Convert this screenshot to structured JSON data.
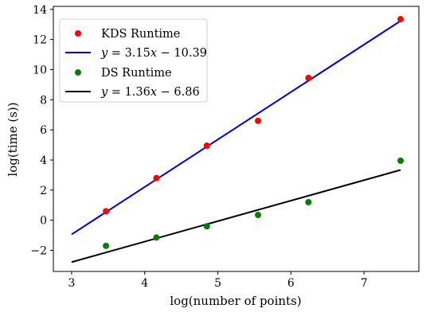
{
  "chart_data": {
    "type": "scatter",
    "xlabel": "log(number of points)",
    "ylabel": "log(time (s))",
    "xlim": [
      2.75,
      7.75
    ],
    "ylim": [
      -3.4,
      14.2
    ],
    "xticks": [
      3,
      4,
      5,
      6,
      7
    ],
    "yticks": [
      -2,
      0,
      2,
      4,
      6,
      8,
      10,
      12,
      14
    ],
    "xtick_labels": [
      "3",
      "4",
      "5",
      "6",
      "7"
    ],
    "ytick_labels": [
      "−2",
      "0",
      "2",
      "4",
      "6",
      "8",
      "10",
      "12",
      "14"
    ],
    "grid": false,
    "legend_position": "upper-left",
    "series": [
      {
        "name": "KDS Runtime",
        "kind": "scatter",
        "color": "#ff0000",
        "x": [
          3.47,
          4.16,
          4.85,
          5.55,
          6.24,
          7.5
        ],
        "y": [
          0.6,
          2.8,
          4.95,
          6.6,
          9.45,
          13.35
        ]
      },
      {
        "name": "y = 3.15x − 10.39",
        "kind": "fit-line",
        "color": "#0000dd",
        "slope": 3.15,
        "intercept": -10.39,
        "x_range": [
          3.0,
          7.5
        ],
        "legend_parts": {
          "var": "y",
          "eq": " = 3.15",
          "xvar": "x",
          "rest": " − 10.39"
        }
      },
      {
        "name": "DS Runtime",
        "kind": "scatter",
        "color": "#008000",
        "x": [
          3.47,
          4.16,
          4.85,
          5.55,
          6.24,
          7.5
        ],
        "y": [
          -1.7,
          -1.15,
          -0.4,
          0.35,
          1.2,
          3.95
        ]
      },
      {
        "name": "y = 1.36x − 6.86",
        "kind": "fit-line",
        "color": "#000000",
        "slope": 1.36,
        "intercept": -6.86,
        "x_range": [
          3.0,
          7.5
        ],
        "legend_parts": {
          "var": "y",
          "eq": " = 1.36",
          "xvar": "x",
          "rest": " − 6.86"
        }
      }
    ]
  }
}
